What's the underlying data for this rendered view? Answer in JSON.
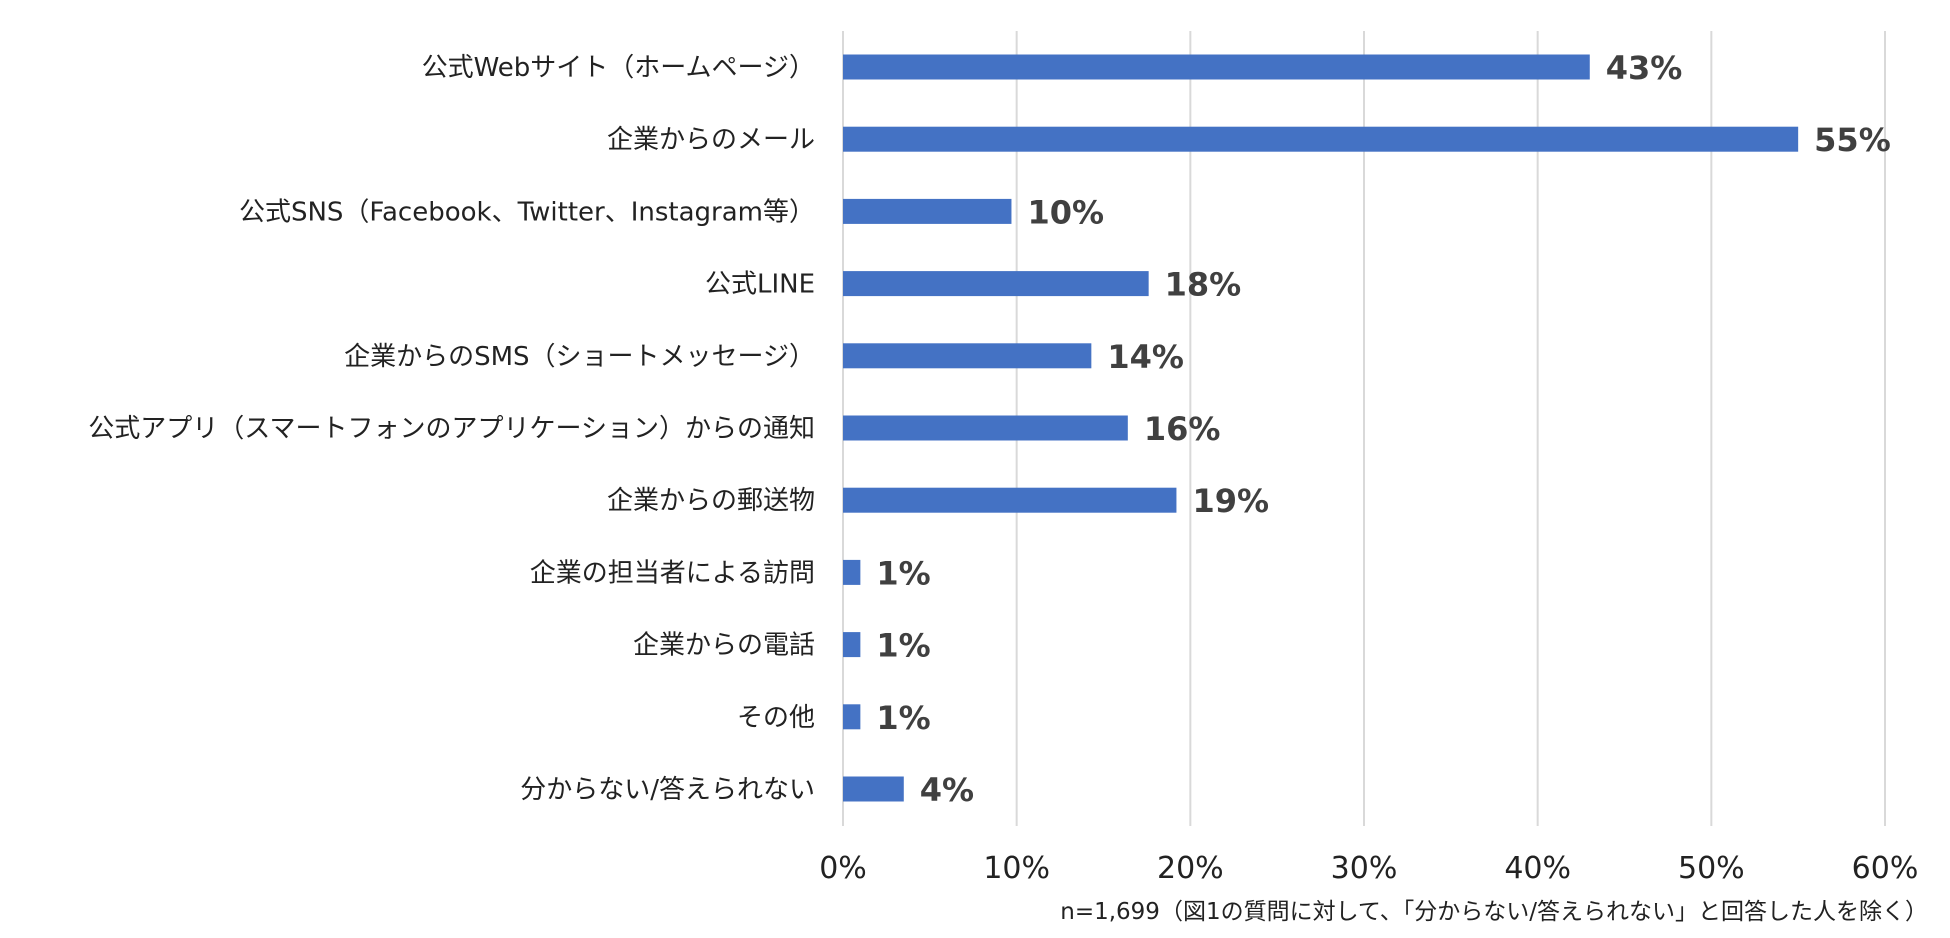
{
  "chart_data": {
    "type": "bar",
    "orientation": "horizontal",
    "categories": [
      "公式Webサイト（ホームページ）",
      "企業からのメール",
      "公式SNS（Facebook、Twitter、Instagram等）",
      "公式LINE",
      "企業からのSMS（ショートメッセージ）",
      "公式アプリ（スマートフォンのアプリケーション）からの通知",
      "企業からの郵送物",
      "企業の担当者による訪問",
      "企業からの電話",
      "その他",
      "分からない/答えられない"
    ],
    "values": [
      43,
      55,
      9.7,
      17.6,
      14.3,
      16.4,
      19.2,
      1,
      1,
      1,
      3.5
    ],
    "value_labels": [
      "43%",
      "55%",
      "10%",
      "18%",
      "14%",
      "16%",
      "19%",
      "1%",
      "1%",
      "1%",
      "4%"
    ],
    "xlim": [
      0,
      60
    ],
    "xticks": [
      "0%",
      "10%",
      "20%",
      "30%",
      "40%",
      "50%",
      "60%"
    ],
    "grid": "vertical",
    "bar_color": "#4472c4"
  },
  "footnote": "n=1,699（図1の質問に対して、「分からない/答えられない」と回答した人を除く）"
}
